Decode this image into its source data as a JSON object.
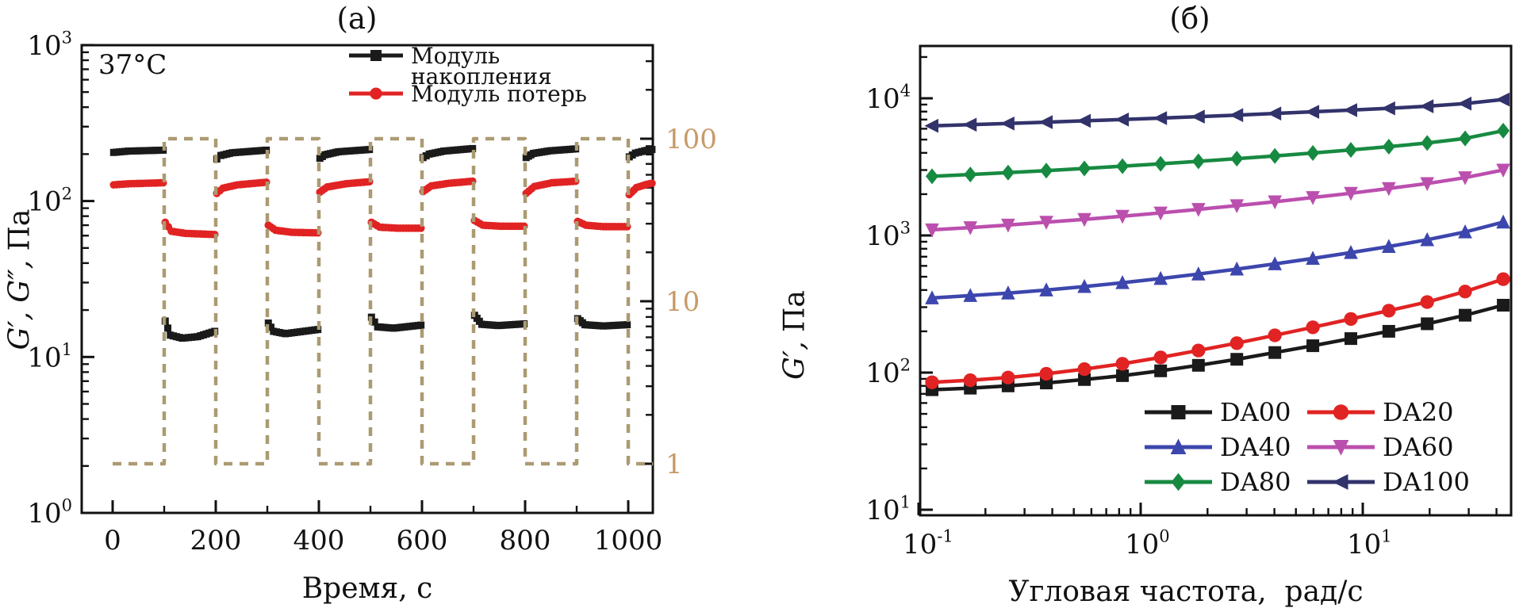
{
  "page": {
    "background": "#ffffff",
    "axis_color": "#111111"
  },
  "chart_data": [
    {
      "type": "line",
      "panel_label": "(a)",
      "annotation": "37°C",
      "xlabel": "Время, с",
      "ylabel_symbols": "G′, G″,",
      "ylabel_unit": "Па",
      "x_axis": {
        "scale": "linear",
        "min": 0,
        "max": 1048,
        "major_ticks": [
          0,
          200,
          400,
          600,
          800,
          1000
        ],
        "minor_ticks": [
          100,
          300,
          500,
          700,
          900
        ]
      },
      "y_axis": {
        "scale": "log",
        "unit": "Па",
        "tick_exponents": [
          0,
          1,
          2,
          3
        ]
      },
      "y2_axis": {
        "scale": "log",
        "color": "#c89a68",
        "major_ticks": [
          1,
          10,
          100
        ],
        "major_tick_labels": [
          "1",
          "10",
          "100"
        ],
        "role": "strain-amplitude-axis"
      },
      "series": [
        {
          "name": "Модуль\nнакопления",
          "color": "#1a1a1a",
          "marker": "square",
          "axis": "y",
          "segments": [
            [
              [
                2,
                205
              ],
              [
                30,
                209
              ],
              [
                98,
                212
              ]
            ],
            [
              [
                102,
                17
              ],
              [
                112,
                13.8
              ],
              [
                135,
                13.2
              ],
              [
                165,
                13.5
              ],
              [
                198,
                14.6
              ]
            ],
            [
              [
                202,
                186
              ],
              [
                210,
                196
              ],
              [
                232,
                204
              ],
              [
                298,
                212
              ]
            ],
            [
              [
                302,
                16.5
              ],
              [
                312,
                14.6
              ],
              [
                335,
                14.1
              ],
              [
                398,
                15.0
              ]
            ],
            [
              [
                402,
                188
              ],
              [
                412,
                198
              ],
              [
                438,
                207
              ],
              [
                498,
                214
              ]
            ],
            [
              [
                502,
                18
              ],
              [
                514,
                15.6
              ],
              [
                545,
                15.3
              ],
              [
                598,
                16.0
              ]
            ],
            [
              [
                602,
                190
              ],
              [
                614,
                200
              ],
              [
                642,
                209
              ],
              [
                698,
                217
              ]
            ],
            [
              [
                702,
                18.5
              ],
              [
                716,
                16.2
              ],
              [
                748,
                15.9
              ],
              [
                798,
                16.3
              ]
            ],
            [
              [
                802,
                190
              ],
              [
                816,
                202
              ],
              [
                848,
                210
              ],
              [
                898,
                216
              ]
            ],
            [
              [
                902,
                17.6
              ],
              [
                916,
                16.1
              ],
              [
                952,
                15.8
              ],
              [
                998,
                16.1
              ]
            ],
            [
              [
                1002,
                192
              ],
              [
                1014,
                203
              ],
              [
                1032,
                210
              ],
              [
                1046,
                214
              ]
            ]
          ]
        },
        {
          "name": "Модуль потерь",
          "color": "#e12323",
          "marker": "circle",
          "axis": "y",
          "segments": [
            [
              [
                2,
                127
              ],
              [
                30,
                129
              ],
              [
                98,
                131
              ]
            ],
            [
              [
                102,
                73
              ],
              [
                114,
                64
              ],
              [
                142,
                62
              ],
              [
                198,
                61
              ]
            ],
            [
              [
                202,
                112
              ],
              [
                214,
                121
              ],
              [
                242,
                127
              ],
              [
                298,
                132
              ]
            ],
            [
              [
                302,
                70
              ],
              [
                316,
                65
              ],
              [
                348,
                63
              ],
              [
                398,
                62.5
              ]
            ],
            [
              [
                402,
                114
              ],
              [
                416,
                123
              ],
              [
                452,
                129
              ],
              [
                498,
                133
              ]
            ],
            [
              [
                502,
                73
              ],
              [
                518,
                68
              ],
              [
                552,
                67
              ],
              [
                598,
                67
              ]
            ],
            [
              [
                602,
                115
              ],
              [
                618,
                125
              ],
              [
                652,
                130
              ],
              [
                698,
                134
              ]
            ],
            [
              [
                702,
                75
              ],
              [
                718,
                70
              ],
              [
                752,
                69
              ],
              [
                798,
                69
              ]
            ],
            [
              [
                802,
                112
              ],
              [
                818,
                124
              ],
              [
                852,
                131
              ],
              [
                898,
                134
              ]
            ],
            [
              [
                902,
                74
              ],
              [
                918,
                70
              ],
              [
                952,
                68.5
              ],
              [
                998,
                68.5
              ]
            ],
            [
              [
                1002,
                110
              ],
              [
                1016,
                122
              ],
              [
                1036,
                128
              ],
              [
                1046,
                130
              ]
            ]
          ]
        },
        {
          "name": "strain-step-program",
          "color": "#ab9b72",
          "style": "dashed",
          "marker": "none",
          "axis": "y2",
          "segments": [
            [
              [
                0,
                1
              ],
              [
                100,
                1
              ],
              [
                100,
                100
              ],
              [
                200,
                100
              ],
              [
                200,
                1
              ],
              [
                300,
                1
              ],
              [
                300,
                100
              ],
              [
                400,
                100
              ],
              [
                400,
                1
              ],
              [
                500,
                1
              ],
              [
                500,
                100
              ],
              [
                600,
                100
              ],
              [
                600,
                1
              ],
              [
                700,
                1
              ],
              [
                700,
                100
              ],
              [
                800,
                100
              ],
              [
                800,
                1
              ],
              [
                900,
                1
              ],
              [
                900,
                100
              ],
              [
                1000,
                100
              ],
              [
                1000,
                1
              ],
              [
                1048,
                1
              ]
            ]
          ]
        }
      ]
    },
    {
      "type": "line",
      "panel_label": "(б)",
      "xlabel": "Угловая частота,  рад/с",
      "ylabel_symbols": "G′,",
      "ylabel_unit": "Па",
      "x_axis": {
        "scale": "log",
        "tick_exponents": [
          -1,
          0,
          1
        ],
        "min": 0.1,
        "max": 46
      },
      "y_axis": {
        "scale": "log",
        "tick_exponents": [
          1,
          2,
          3,
          4
        ],
        "min": 10,
        "max": 26000
      },
      "x_values": [
        0.115,
        0.171,
        0.253,
        0.376,
        0.558,
        0.828,
        1.23,
        1.82,
        2.71,
        4.02,
        5.96,
        8.84,
        13.1,
        19.5,
        28.9,
        42.9
      ],
      "series": [
        {
          "name": "DA00",
          "color": "#1a1a1a",
          "marker": "square",
          "values": [
            75,
            77,
            80,
            84,
            89,
            95,
            103,
            113,
            125,
            140,
            157,
            177,
            200,
            227,
            262,
            310
          ]
        },
        {
          "name": "DA20",
          "color": "#e12323",
          "marker": "circle",
          "values": [
            85,
            88,
            92,
            98,
            106,
            116,
            129,
            145,
            164,
            187,
            214,
            246,
            283,
            327,
            390,
            480
          ]
        },
        {
          "name": "DA40",
          "color": "#3d46ad",
          "marker": "triangle-up",
          "values": [
            350,
            364,
            380,
            400,
            424,
            452,
            485,
            523,
            568,
            620,
            680,
            750,
            830,
            930,
            1060,
            1250
          ]
        },
        {
          "name": "DA60",
          "color": "#bb4fae",
          "marker": "triangle-down",
          "values": [
            1100,
            1140,
            1190,
            1250,
            1310,
            1380,
            1460,
            1550,
            1650,
            1760,
            1890,
            2030,
            2200,
            2390,
            2640,
            3000
          ]
        },
        {
          "name": "DA80",
          "color": "#178a41",
          "marker": "diamond",
          "values": [
            2700,
            2780,
            2870,
            2970,
            3080,
            3200,
            3330,
            3470,
            3630,
            3800,
            3990,
            4200,
            4440,
            4720,
            5100,
            5800
          ]
        },
        {
          "name": "DA100",
          "color": "#32336b",
          "marker": "triangle-left",
          "values": [
            6300,
            6420,
            6550,
            6700,
            6850,
            7000,
            7170,
            7350,
            7540,
            7750,
            7970,
            8200,
            8450,
            8750,
            9150,
            9800
          ]
        }
      ],
      "legend_order": [
        [
          "DA00",
          "DA20"
        ],
        [
          "DA40",
          "DA60"
        ],
        [
          "DA80",
          "DA100"
        ]
      ]
    }
  ]
}
